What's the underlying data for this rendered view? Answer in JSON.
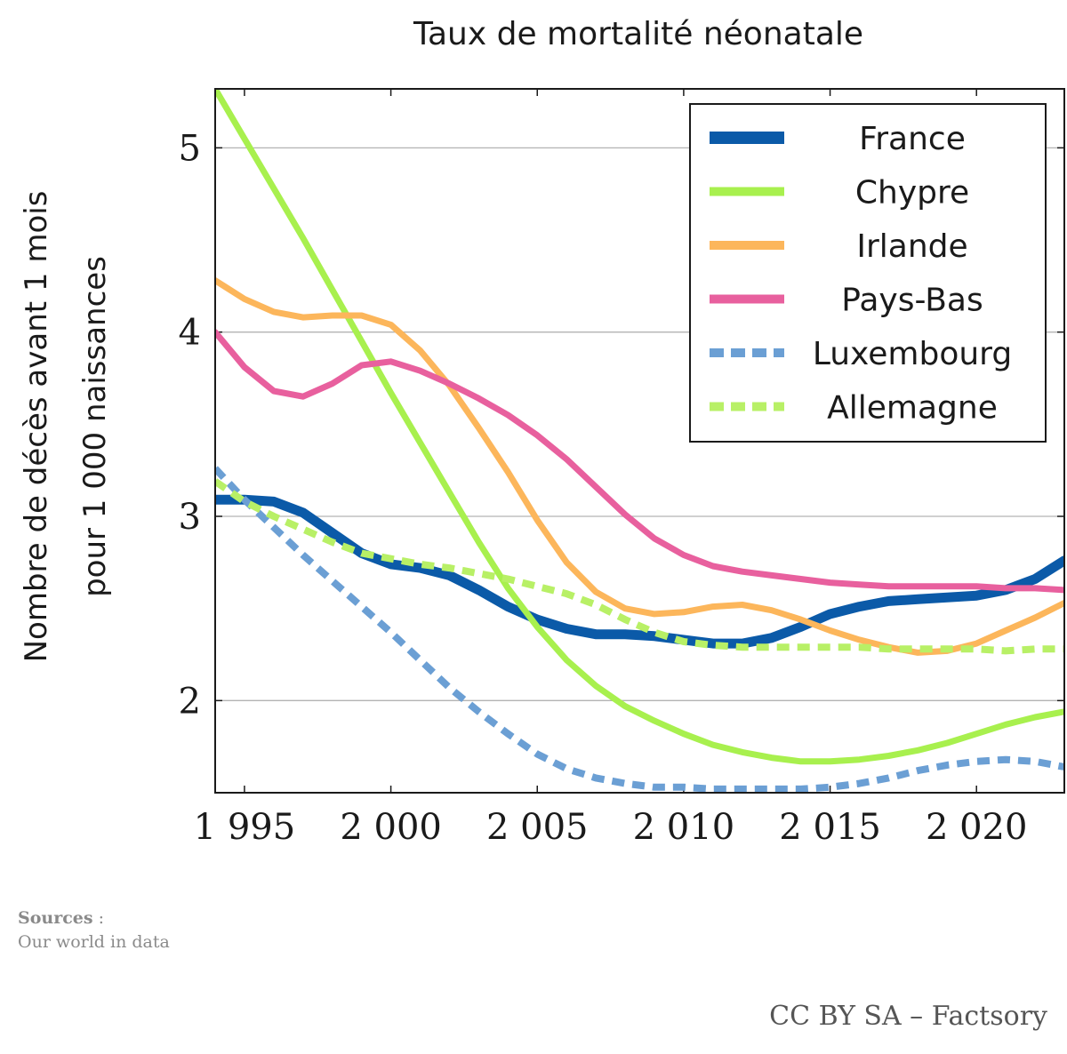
{
  "chart_data": {
    "type": "line",
    "title": "Taux de mortalité néonatale",
    "ylabel_line1": "Nombre de décès avant 1 mois",
    "ylabel_line2": "pour 1 000 naissances",
    "xlim": [
      1994,
      2023
    ],
    "ylim": [
      1.5,
      5.32
    ],
    "xticks": [
      1995,
      2000,
      2005,
      2010,
      2015,
      2020
    ],
    "xtick_labels": [
      "1 995",
      "2 000",
      "2 005",
      "2 010",
      "2 015",
      "2 020"
    ],
    "yticks": [
      2,
      3,
      4,
      5
    ],
    "ytick_labels": [
      "2",
      "3",
      "4",
      "5"
    ],
    "grid": "horizontal",
    "legend_position": "top-right",
    "x": [
      1994,
      1995,
      1996,
      1997,
      1998,
      1999,
      2000,
      2001,
      2002,
      2003,
      2004,
      2005,
      2006,
      2007,
      2008,
      2009,
      2010,
      2011,
      2012,
      2013,
      2014,
      2015,
      2016,
      2017,
      2018,
      2019,
      2020,
      2021,
      2022,
      2023
    ],
    "series": [
      {
        "name": "France",
        "color": "#0b5aa8",
        "dash": "solid",
        "width": 11,
        "opacity": 1,
        "values": [
          3.09,
          3.09,
          3.08,
          3.02,
          2.91,
          2.8,
          2.74,
          2.72,
          2.68,
          2.6,
          2.51,
          2.44,
          2.39,
          2.36,
          2.36,
          2.35,
          2.33,
          2.31,
          2.31,
          2.34,
          2.4,
          2.47,
          2.51,
          2.54,
          2.55,
          2.56,
          2.57,
          2.6,
          2.66,
          2.76
        ]
      },
      {
        "name": "Chypre",
        "color": "#a8f04e",
        "dash": "solid",
        "width": 7,
        "opacity": 1,
        "values": [
          5.32,
          5.05,
          4.78,
          4.51,
          4.23,
          3.95,
          3.67,
          3.4,
          3.13,
          2.86,
          2.61,
          2.4,
          2.22,
          2.08,
          1.97,
          1.89,
          1.82,
          1.76,
          1.72,
          1.69,
          1.67,
          1.67,
          1.68,
          1.7,
          1.73,
          1.77,
          1.82,
          1.87,
          1.91,
          1.94
        ]
      },
      {
        "name": "Irlande",
        "color": "#fcb65b",
        "dash": "solid",
        "width": 7,
        "opacity": 1,
        "values": [
          4.28,
          4.18,
          4.11,
          4.08,
          4.09,
          4.09,
          4.04,
          3.9,
          3.71,
          3.48,
          3.24,
          2.98,
          2.75,
          2.59,
          2.5,
          2.47,
          2.48,
          2.51,
          2.52,
          2.49,
          2.44,
          2.38,
          2.33,
          2.29,
          2.26,
          2.27,
          2.31,
          2.38,
          2.45,
          2.53
        ]
      },
      {
        "name": "Pays-Bas",
        "color": "#e8609e",
        "dash": "solid",
        "width": 7,
        "opacity": 1,
        "values": [
          4.0,
          3.81,
          3.68,
          3.65,
          3.72,
          3.82,
          3.84,
          3.79,
          3.72,
          3.64,
          3.55,
          3.44,
          3.31,
          3.16,
          3.01,
          2.88,
          2.79,
          2.73,
          2.7,
          2.68,
          2.66,
          2.64,
          2.63,
          2.62,
          2.62,
          2.62,
          2.62,
          2.61,
          2.61,
          2.6
        ]
      },
      {
        "name": "Luxembourg",
        "color": "#6b9fd4",
        "dash": "dashed",
        "width": 8,
        "opacity": 1,
        "values": [
          3.26,
          3.09,
          2.94,
          2.79,
          2.65,
          2.51,
          2.37,
          2.22,
          2.07,
          1.94,
          1.82,
          1.71,
          1.63,
          1.58,
          1.55,
          1.53,
          1.53,
          1.52,
          1.52,
          1.52,
          1.52,
          1.53,
          1.55,
          1.58,
          1.62,
          1.65,
          1.67,
          1.68,
          1.67,
          1.64
        ]
      },
      {
        "name": "Allemagne",
        "color": "#b8f066",
        "dash": "dashed",
        "width": 8,
        "opacity": 1,
        "values": [
          3.19,
          3.08,
          3.0,
          2.93,
          2.86,
          2.8,
          2.77,
          2.74,
          2.72,
          2.69,
          2.66,
          2.62,
          2.58,
          2.52,
          2.44,
          2.37,
          2.32,
          2.3,
          2.29,
          2.29,
          2.29,
          2.29,
          2.29,
          2.28,
          2.28,
          2.28,
          2.28,
          2.27,
          2.28,
          2.28
        ]
      }
    ]
  },
  "footer": {
    "sources_label": "Sources",
    "sources_sep": " :",
    "sources_text": "Our world in data",
    "credit": "CC BY SA – Factsory"
  }
}
